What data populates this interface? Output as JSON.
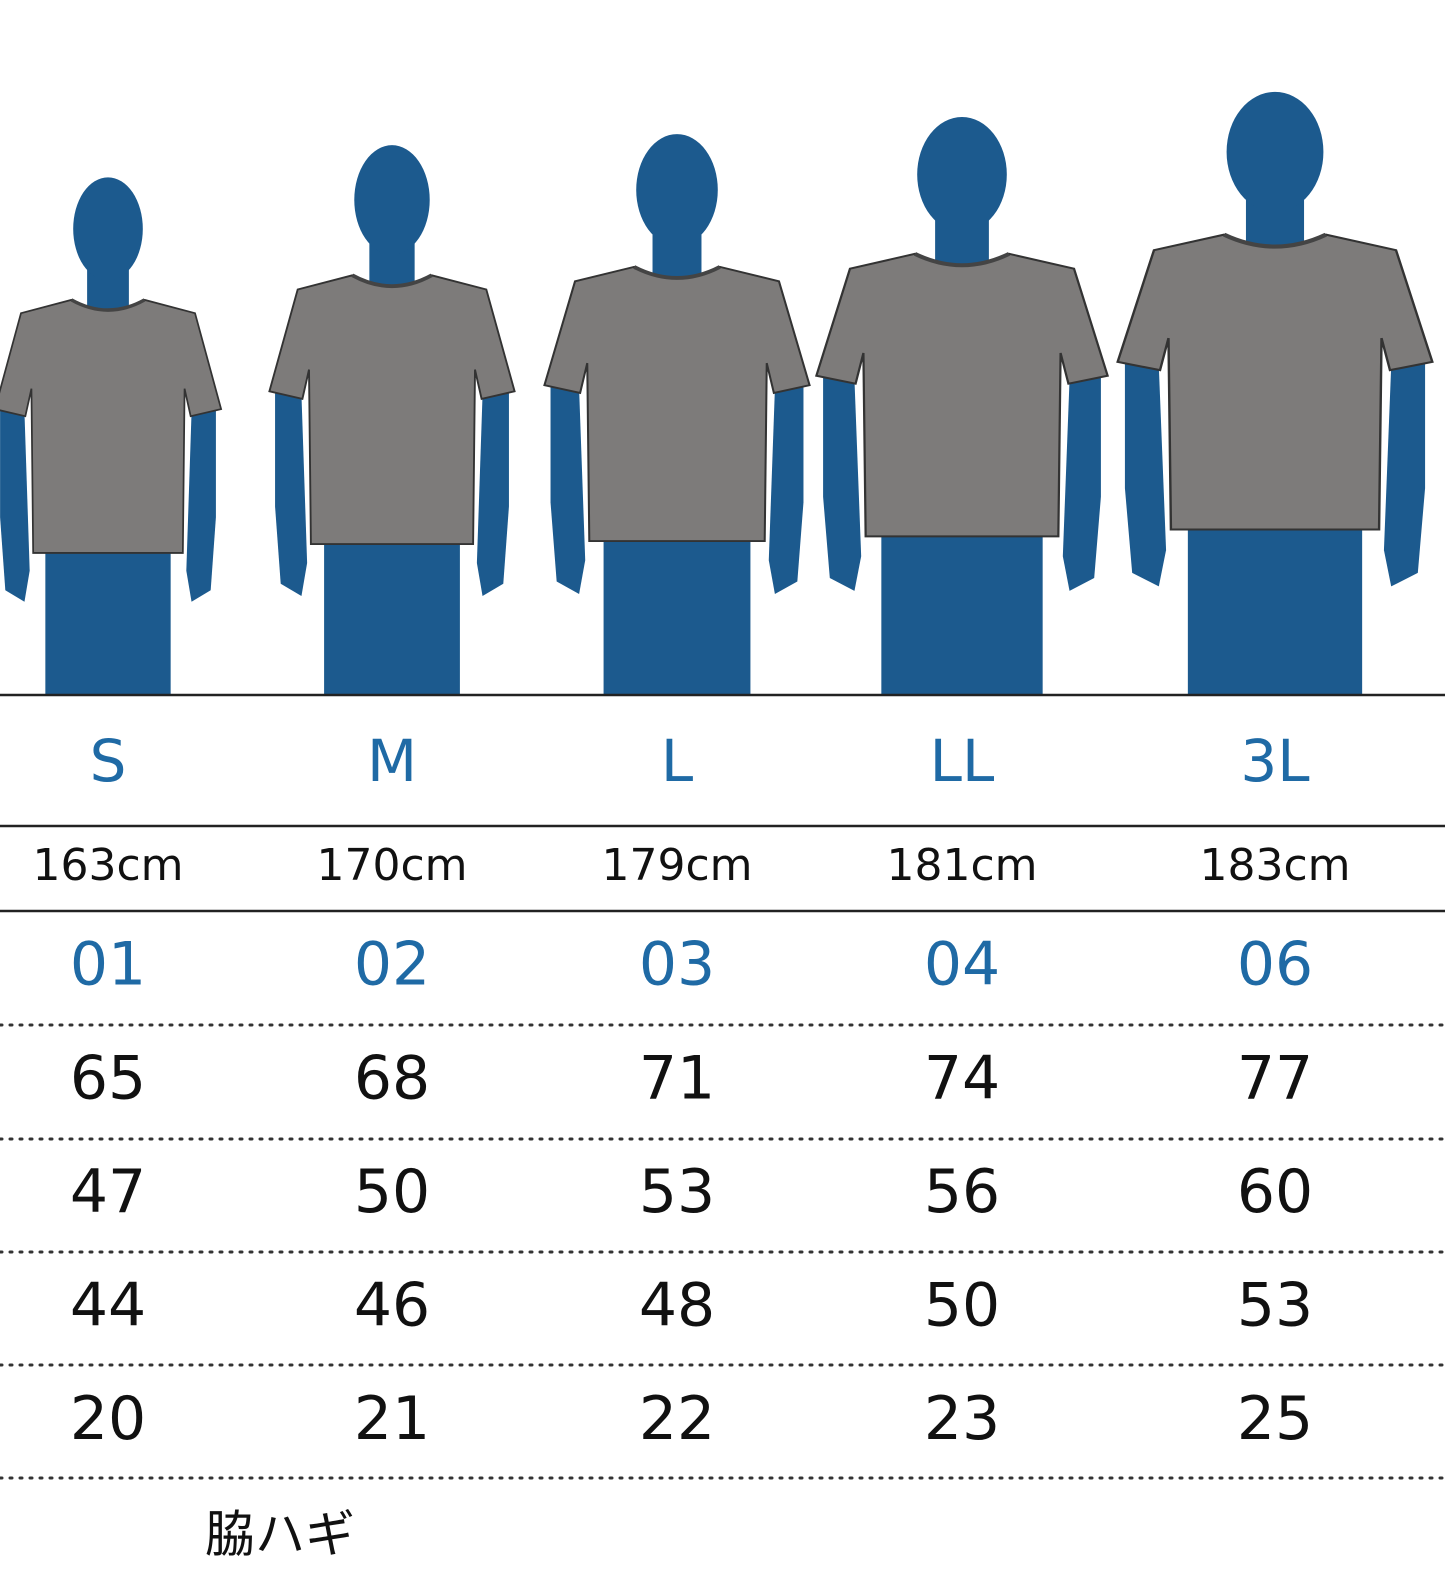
{
  "sizes": [
    "S",
    "M",
    "L",
    "LL",
    "3L"
  ],
  "heights": [
    "163cm",
    "170cm",
    "179cm",
    "181cm",
    "183cm"
  ],
  "codes": [
    "01",
    "02",
    "03",
    "04",
    "06"
  ],
  "rows": [
    [
      "65",
      "68",
      "71",
      "74",
      "77"
    ],
    [
      "47",
      "50",
      "53",
      "56",
      "60"
    ],
    [
      "44",
      "46",
      "48",
      "50",
      "53"
    ],
    [
      "20",
      "21",
      "22",
      "23",
      "25"
    ]
  ],
  "footer": "脇ハギ"
}
